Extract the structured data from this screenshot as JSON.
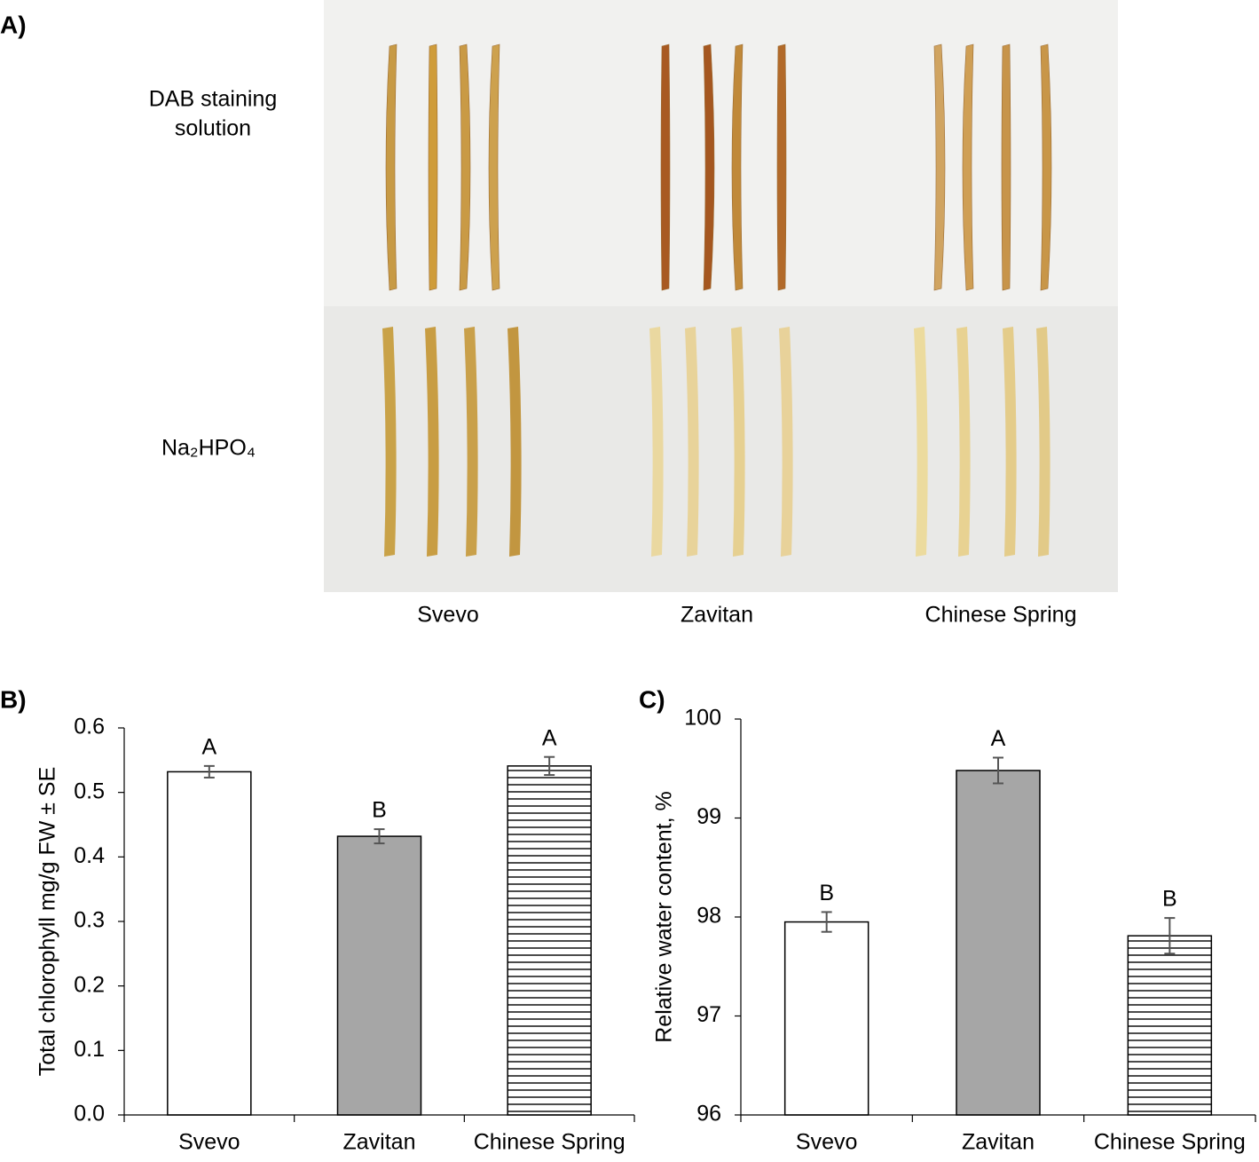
{
  "panel_a": {
    "label": "A)",
    "row_labels": [
      "DAB staining",
      "solution",
      "Na₂HPO₄"
    ],
    "columns": [
      "Svevo",
      "Zavitan",
      "Chinese Spring"
    ]
  },
  "chart_data": [
    {
      "type": "bar",
      "label": "B)",
      "ylabel": "Total chlorophyll mg/g FW ± SE",
      "categories": [
        "Svevo",
        "Zavitan",
        "Chinese Spring"
      ],
      "values": [
        0.532,
        0.432,
        0.541
      ],
      "errors": [
        0.009,
        0.011,
        0.014
      ],
      "annotations": [
        "A",
        "B",
        "A"
      ],
      "colors": [
        "#ffffff",
        "#a6a6a6",
        "#ffffff"
      ],
      "hatch": [
        false,
        false,
        true
      ],
      "ylim": [
        0,
        0.6
      ],
      "yticks": [
        {
          "value": 0,
          "label": "0.0"
        },
        0.1,
        0.2,
        0.3,
        0.4,
        0.5,
        0.6
      ]
    },
    {
      "type": "bar",
      "label": "C)",
      "ylabel": "Relative water content, %",
      "categories": [
        "Svevo",
        "Zavitan",
        "Chinese Spring"
      ],
      "values": [
        97.95,
        99.48,
        97.81
      ],
      "errors": [
        0.1,
        0.13,
        0.18
      ],
      "annotations": [
        "B",
        "A",
        "B"
      ],
      "colors": [
        "#ffffff",
        "#a6a6a6",
        "#ffffff"
      ],
      "hatch": [
        false,
        false,
        true
      ],
      "ylim": [
        96,
        100
      ],
      "yticks": [
        96,
        97,
        98,
        99,
        100
      ]
    }
  ]
}
